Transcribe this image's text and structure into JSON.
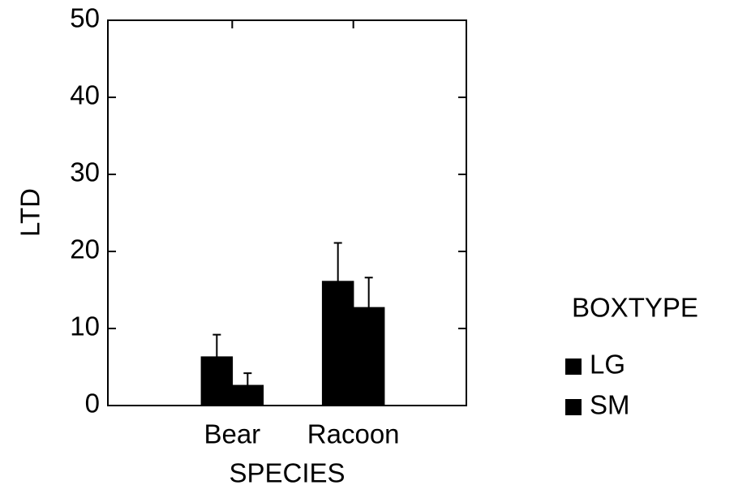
{
  "chart_data": {
    "type": "bar",
    "x_label": "SPECIES",
    "y_label": "LTD",
    "categories": [
      "Bear",
      "Racoon"
    ],
    "series": [
      {
        "name": "LG",
        "color": "#000000",
        "values": [
          6.3,
          16.1
        ],
        "errors": [
          2.9,
          5.0
        ]
      },
      {
        "name": "SM",
        "color": "#000000",
        "values": [
          2.6,
          12.7
        ],
        "errors": [
          1.6,
          3.9
        ]
      }
    ],
    "ylim": [
      0,
      50
    ],
    "yticks": [
      0,
      10,
      20,
      30,
      40,
      50
    ],
    "legend_title": "BOXTYPE",
    "legend_position": "right"
  }
}
